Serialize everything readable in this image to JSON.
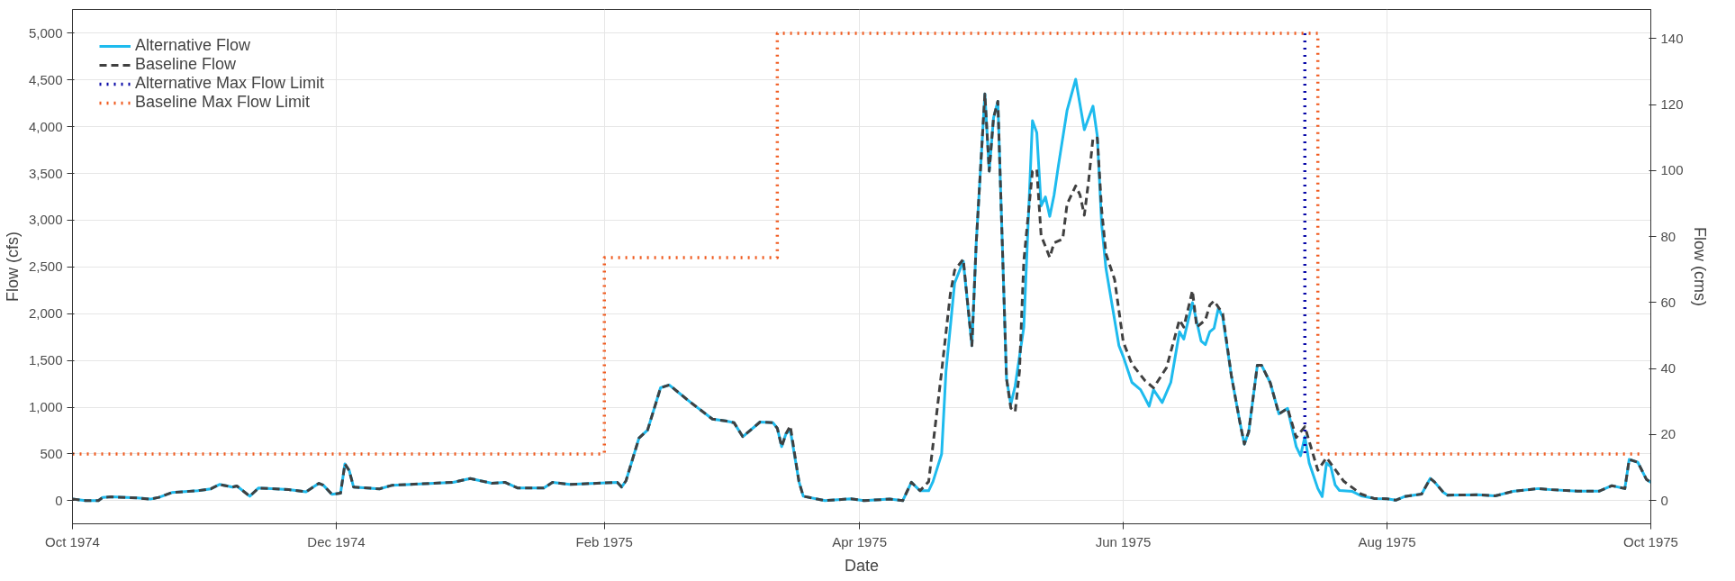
{
  "chart_data": {
    "type": "line",
    "xlabel": "Date",
    "ylabel": "Flow (cfs)",
    "y2label": "Flow (cms)",
    "xlim": [
      "1974-10-01",
      "1975-10-01"
    ],
    "xticks": [
      {
        "value": "1974-10-01",
        "label": "Oct 1974"
      },
      {
        "value": "1974-12-01",
        "label": "Dec 1974"
      },
      {
        "value": "1975-02-01",
        "label": "Feb 1975"
      },
      {
        "value": "1975-04-01",
        "label": "Apr 1975"
      },
      {
        "value": "1975-06-01",
        "label": "Jun 1975"
      },
      {
        "value": "1975-08-01",
        "label": "Aug 1975"
      },
      {
        "value": "1975-10-01",
        "label": "Oct 1975"
      }
    ],
    "ylim": [
      -248,
      5255
    ],
    "yticks": [
      0,
      500,
      {
        "value": 1000,
        "label": "1,000"
      },
      {
        "value": 1500,
        "label": "1,500"
      },
      {
        "value": 2000,
        "label": "2,000"
      },
      {
        "value": 2500,
        "label": "2,500"
      },
      {
        "value": 3000,
        "label": "3,000"
      },
      {
        "value": 3500,
        "label": "3,500"
      },
      {
        "value": 4000,
        "label": "4,000"
      },
      {
        "value": 4500,
        "label": "4,500"
      },
      {
        "value": 5000,
        "label": "5,000"
      }
    ],
    "y2lim": [
      -7.02,
      148.8
    ],
    "y2ticks": [
      0,
      20,
      40,
      60,
      80,
      100,
      120,
      140
    ],
    "grid": true,
    "legend": "top left",
    "series": [
      {
        "name": "Alternative Flow",
        "color": "#1ebbee",
        "line_style": "solid",
        "x": [
          "1974-10-01",
          "1974-10-04",
          "1974-10-07",
          "1974-10-08",
          "1974-10-10",
          "1974-10-16",
          "1974-10-19",
          "1974-10-21",
          "1974-10-24",
          "1974-10-30",
          "1974-11-02",
          "1974-11-04",
          "1974-11-07",
          "1974-11-08",
          "1974-11-11",
          "1974-11-13",
          "1974-11-17",
          "1974-11-20",
          "1974-11-24",
          "1974-11-27",
          "1974-11-28",
          "1974-11-30",
          "1974-12-02",
          "1974-12-03",
          "1974-12-04",
          "1974-12-05",
          "1974-12-11",
          "1974-12-14",
          "1974-12-28",
          "1975-01-01",
          "1975-01-06",
          "1975-01-09",
          "1975-01-12",
          "1975-01-18",
          "1975-01-20",
          "1975-01-24",
          "1975-02-04",
          "1975-02-05",
          "1975-02-06",
          "1975-02-09",
          "1975-02-11",
          "1975-02-14",
          "1975-02-16",
          "1975-02-21",
          "1975-02-26",
          "1975-03-01",
          "1975-03-03",
          "1975-03-05",
          "1975-03-09",
          "1975-03-12",
          "1975-03-13",
          "1975-03-14",
          "1975-03-15",
          "1975-03-16",
          "1975-03-18",
          "1975-03-19",
          "1975-03-24",
          "1975-03-30",
          "1975-04-02",
          "1975-04-08",
          "1975-04-11",
          "1975-04-13",
          "1975-04-15",
          "1975-04-17",
          "1975-04-18",
          "1975-04-20",
          "1975-04-21",
          "1975-04-23",
          "1975-04-25",
          "1975-04-27",
          "1975-04-28",
          "1975-04-30",
          "1975-05-01",
          "1975-05-02",
          "1975-05-03",
          "1975-05-05",
          "1975-05-06",
          "1975-05-07",
          "1975-05-09",
          "1975-05-11",
          "1975-05-12",
          "1975-05-13",
          "1975-05-14",
          "1975-05-15",
          "1975-05-16",
          "1975-05-17",
          "1975-05-19",
          "1975-05-21",
          "1975-05-23",
          "1975-05-25",
          "1975-05-26",
          "1975-05-27",
          "1975-05-28",
          "1975-05-31",
          "1975-06-01",
          "1975-06-03",
          "1975-06-05",
          "1975-06-07",
          "1975-06-08",
          "1975-06-10",
          "1975-06-12",
          "1975-06-14",
          "1975-06-15",
          "1975-06-17",
          "1975-06-19",
          "1975-06-20",
          "1975-06-21",
          "1975-06-22",
          "1975-06-23",
          "1975-06-24",
          "1975-06-26",
          "1975-06-28",
          "1975-06-29",
          "1975-06-30",
          "1975-07-02",
          "1975-07-03",
          "1975-07-05",
          "1975-07-07",
          "1975-07-09",
          "1975-07-11",
          "1975-07-12",
          "1975-07-13",
          "1975-07-14",
          "1975-07-16",
          "1975-07-17",
          "1975-07-18",
          "1975-07-19",
          "1975-07-20",
          "1975-07-21",
          "1975-07-24",
          "1975-07-26",
          "1975-07-29",
          "1975-08-01",
          "1975-08-03",
          "1975-08-05",
          "1975-08-09",
          "1975-08-11",
          "1975-08-12",
          "1975-08-14",
          "1975-08-15",
          "1975-08-22",
          "1975-08-26",
          "1975-08-30",
          "1975-09-05",
          "1975-09-08",
          "1975-09-14",
          "1975-09-19",
          "1975-09-22",
          "1975-09-25",
          "1975-09-26",
          "1975-09-28",
          "1975-09-30",
          "1975-10-01"
        ],
        "values": [
          16,
          0,
          0,
          35,
          40,
          28,
          16,
          35,
          86,
          106,
          126,
          173,
          145,
          157,
          47,
          134,
          126,
          118,
          94,
          185,
          165,
          67,
          79,
          393,
          322,
          145,
          126,
          165,
          196,
          236,
          185,
          196,
          134,
          134,
          196,
          173,
          196,
          145,
          212,
          668,
          755,
          1207,
          1238,
          1049,
          872,
          853,
          833,
          684,
          841,
          833,
          774,
          578,
          715,
          755,
          204,
          47,
          0,
          20,
          0,
          16,
          0,
          196,
          106,
          106,
          204,
          499,
          1383,
          2327,
          2562,
          1658,
          2759,
          4351,
          3525,
          4095,
          4272,
          1305,
          1030,
          1226,
          1855,
          4064,
          3938,
          3152,
          3250,
          3042,
          3270,
          3584,
          4174,
          4508,
          3969,
          4221,
          3899,
          2955,
          2484,
          1658,
          1541,
          1265,
          1187,
          1010,
          1187,
          1049,
          1265,
          1806,
          1728,
          2118,
          1708,
          1669,
          1806,
          1845,
          2059,
          1962,
          1338,
          831,
          605,
          733,
          1447,
          1447,
          1260,
          928,
          987,
          577,
          480,
          683,
          402,
          129,
          43,
          402,
          363,
          168,
          109,
          98,
          51,
          23,
          20,
          4,
          43,
          70,
          238,
          199,
          90,
          59,
          62,
          51,
          98,
          129,
          117,
          101,
          101,
          160,
          129,
          441,
          410,
          226,
          195
        ]
      },
      {
        "name": "Baseline Flow",
        "color": "#404040",
        "line_style": "dashed",
        "x": [
          "1974-10-01",
          "1974-10-04",
          "1974-10-07",
          "1974-10-08",
          "1974-10-10",
          "1974-10-16",
          "1974-10-19",
          "1974-10-21",
          "1974-10-24",
          "1974-10-30",
          "1974-11-02",
          "1974-11-04",
          "1974-11-07",
          "1974-11-08",
          "1974-11-11",
          "1974-11-13",
          "1974-11-17",
          "1974-11-20",
          "1974-11-24",
          "1974-11-27",
          "1974-11-28",
          "1974-11-30",
          "1974-12-02",
          "1974-12-03",
          "1974-12-04",
          "1974-12-05",
          "1974-12-11",
          "1974-12-14",
          "1974-12-28",
          "1975-01-01",
          "1975-01-06",
          "1975-01-09",
          "1975-01-12",
          "1975-01-18",
          "1975-01-20",
          "1975-01-24",
          "1975-02-04",
          "1975-02-05",
          "1975-02-06",
          "1975-02-09",
          "1975-02-11",
          "1975-02-14",
          "1975-02-16",
          "1975-02-21",
          "1975-02-26",
          "1975-03-01",
          "1975-03-03",
          "1975-03-05",
          "1975-03-09",
          "1975-03-12",
          "1975-03-13",
          "1975-03-14",
          "1975-03-15",
          "1975-03-16",
          "1975-03-18",
          "1975-03-19",
          "1975-03-24",
          "1975-03-30",
          "1975-04-02",
          "1975-04-08",
          "1975-04-11",
          "1975-04-13",
          "1975-04-15",
          "1975-04-17",
          "1975-04-20",
          "1975-04-22",
          "1975-04-23",
          "1975-04-25",
          "1975-04-27",
          "1975-04-28",
          "1975-04-30",
          "1975-05-01",
          "1975-05-02",
          "1975-05-03",
          "1975-05-05",
          "1975-05-06",
          "1975-05-07",
          "1975-05-08",
          "1975-05-09",
          "1975-05-11",
          "1975-05-12",
          "1975-05-13",
          "1975-05-14",
          "1975-05-15",
          "1975-05-16",
          "1975-05-18",
          "1975-05-19",
          "1975-05-21",
          "1975-05-22",
          "1975-05-23",
          "1975-05-24",
          "1975-05-25",
          "1975-05-26",
          "1975-05-27",
          "1975-05-28",
          "1975-05-30",
          "1975-06-01",
          "1975-06-03",
          "1975-06-06",
          "1975-06-08",
          "1975-06-11",
          "1975-06-14",
          "1975-06-15",
          "1975-06-17",
          "1975-06-18",
          "1975-06-20",
          "1975-06-21",
          "1975-06-22",
          "1975-06-24",
          "1975-06-26",
          "1975-06-28",
          "1975-06-29",
          "1975-06-30",
          "1975-07-02",
          "1975-07-03",
          "1975-07-05",
          "1975-07-07",
          "1975-07-09",
          "1975-07-11",
          "1975-07-13",
          "1975-07-15",
          "1975-07-16",
          "1975-07-18",
          "1975-07-22",
          "1975-07-26",
          "1975-07-29",
          "1975-08-01",
          "1975-08-03",
          "1975-08-05",
          "1975-08-09",
          "1975-08-11",
          "1975-08-12",
          "1975-08-14",
          "1975-08-15",
          "1975-08-22",
          "1975-08-26",
          "1975-08-30",
          "1975-09-05",
          "1975-09-08",
          "1975-09-14",
          "1975-09-19",
          "1975-09-22",
          "1975-09-25",
          "1975-09-26",
          "1975-09-28",
          "1975-09-30",
          "1975-10-01"
        ],
        "values": [
          16,
          0,
          0,
          35,
          40,
          28,
          16,
          35,
          86,
          106,
          126,
          173,
          145,
          157,
          47,
          134,
          126,
          118,
          94,
          185,
          165,
          67,
          79,
          393,
          322,
          145,
          126,
          165,
          196,
          236,
          185,
          196,
          134,
          134,
          196,
          173,
          196,
          145,
          212,
          668,
          755,
          1207,
          1238,
          1049,
          872,
          853,
          833,
          684,
          841,
          833,
          774,
          578,
          715,
          800,
          204,
          47,
          0,
          20,
          0,
          16,
          0,
          196,
          106,
          204,
          1383,
          2209,
          2464,
          2582,
          1658,
          2759,
          4351,
          3525,
          4095,
          4272,
          1305,
          990,
          951,
          1383,
          2562,
          3525,
          3545,
          2837,
          2720,
          2602,
          2759,
          2798,
          3171,
          3368,
          3270,
          3054,
          3427,
          3879,
          3879,
          3113,
          2641,
          2366,
          1698,
          1462,
          1285,
          1207,
          1423,
          1934,
          1855,
          2248,
          1855,
          1934,
          2091,
          2137,
          2001,
          1338,
          831,
          605,
          733,
          1447,
          1447,
          1260,
          928,
          987,
          675,
          792,
          480,
          324,
          460,
          207,
          70,
          23,
          20,
          4,
          43,
          70,
          238,
          199,
          90,
          59,
          62,
          51,
          98,
          129,
          117,
          101,
          101,
          160,
          129,
          441,
          410,
          226,
          195
        ]
      },
      {
        "name": "Alternative Max Flow Limit",
        "color": "#0a0aa8",
        "line_style": "dotted",
        "x": [
          "1975-07-13",
          "1975-07-13"
        ],
        "values": [
          5000,
          500
        ]
      },
      {
        "name": "Baseline Max Flow Limit",
        "type": "step",
        "color": "#f05a1e",
        "line_style": "dotted",
        "x": [
          "1974-10-01",
          "1975-02-01",
          "1975-03-13",
          "1975-07-16",
          "1975-09-29"
        ],
        "values": [
          500,
          2600,
          5000,
          500,
          500
        ]
      }
    ]
  }
}
